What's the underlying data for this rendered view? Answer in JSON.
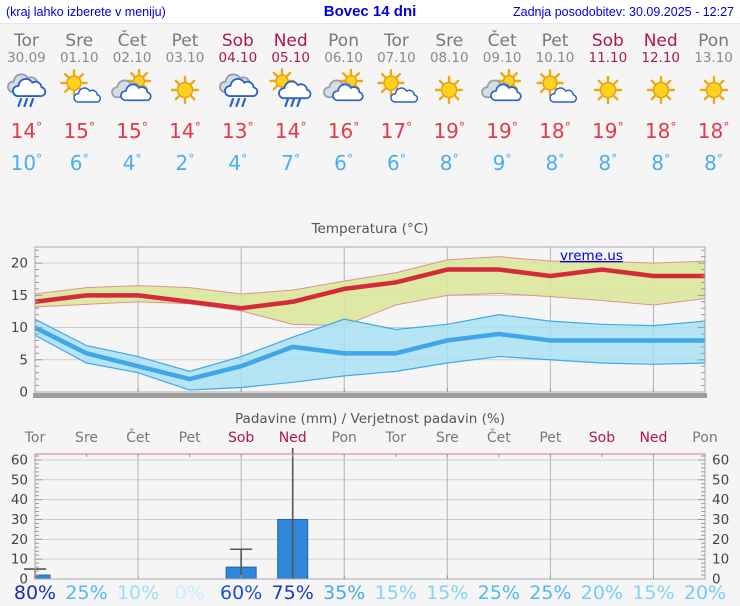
{
  "header": {
    "left_link": "(kraj lahko izberete v meniju)",
    "title": "Bovec 14 dni",
    "updated": "Zadnja posodobitev: 30.09.2025 - 12:27"
  },
  "watermark": "vreme.us",
  "forecast": {
    "degree_symbol": "°",
    "days": [
      {
        "name": "Tor",
        "date": "30.09",
        "weekend": false,
        "icon": "rain-cloud",
        "tmax": "14",
        "tmin": "10"
      },
      {
        "name": "Sre",
        "date": "01.10",
        "weekend": false,
        "icon": "sun-cloud",
        "tmax": "15",
        "tmin": "6"
      },
      {
        "name": "Čet",
        "date": "02.10",
        "weekend": false,
        "icon": "cloud-sun",
        "tmax": "15",
        "tmin": "4"
      },
      {
        "name": "Pet",
        "date": "03.10",
        "weekend": false,
        "icon": "sun",
        "tmax": "14",
        "tmin": "2"
      },
      {
        "name": "Sob",
        "date": "04.10",
        "weekend": true,
        "icon": "rain-cloud",
        "tmax": "13",
        "tmin": "4"
      },
      {
        "name": "Ned",
        "date": "05.10",
        "weekend": true,
        "icon": "sun-rain",
        "tmax": "14",
        "tmin": "7"
      },
      {
        "name": "Pon",
        "date": "06.10",
        "weekend": false,
        "icon": "cloud-sun",
        "tmax": "16",
        "tmin": "6"
      },
      {
        "name": "Tor",
        "date": "07.10",
        "weekend": false,
        "icon": "sun-cloud",
        "tmax": "17",
        "tmin": "6"
      },
      {
        "name": "Sre",
        "date": "08.10",
        "weekend": false,
        "icon": "sun",
        "tmax": "19",
        "tmin": "8"
      },
      {
        "name": "Čet",
        "date": "09.10",
        "weekend": false,
        "icon": "cloud-sun",
        "tmax": "19",
        "tmin": "9"
      },
      {
        "name": "Pet",
        "date": "10.10",
        "weekend": false,
        "icon": "sun-cloud",
        "tmax": "18",
        "tmin": "8"
      },
      {
        "name": "Sob",
        "date": "11.10",
        "weekend": true,
        "icon": "sun",
        "tmax": "19",
        "tmin": "8"
      },
      {
        "name": "Ned",
        "date": "12.10",
        "weekend": true,
        "icon": "sun",
        "tmax": "18",
        "tmin": "8"
      },
      {
        "name": "Pon",
        "date": "13.10",
        "weekend": false,
        "icon": "sun",
        "tmax": "18",
        "tmin": "8"
      }
    ]
  },
  "chart_data": [
    {
      "type": "line",
      "title": "Temperatura (°C)",
      "x_labels": [
        "Tor",
        "Sre",
        "Čet",
        "Pet",
        "Sob",
        "Ned",
        "Pon",
        "Tor",
        "Sre",
        "Čet",
        "Pet",
        "Sob",
        "Ned",
        "Pon"
      ],
      "ylim": [
        0,
        22.5
      ],
      "yticks": [
        0,
        5,
        10,
        15,
        20
      ],
      "grid": true,
      "legend": "none",
      "series": [
        {
          "name": "max temperature",
          "color": "#d42a3a",
          "values": [
            14,
            15,
            15,
            14,
            13,
            14,
            16,
            17,
            19,
            19,
            18,
            19,
            18,
            18
          ],
          "band_upper": [
            15.2,
            16.2,
            16.5,
            16.2,
            15.2,
            15.8,
            17.2,
            18.5,
            20.5,
            21,
            20.3,
            20.3,
            20,
            20.3
          ],
          "band_lower": [
            13.2,
            13.6,
            14,
            13.7,
            12.6,
            10.5,
            10.3,
            13.5,
            15,
            15.3,
            14.8,
            14.2,
            13.5,
            14.5
          ],
          "band_fill": "#dce89c",
          "band_edge": "#e49090"
        },
        {
          "name": "min temperature",
          "color": "#3fa6e8",
          "values": [
            10,
            6,
            4,
            2,
            4,
            7,
            6,
            6,
            8,
            9,
            8,
            8,
            8,
            8
          ],
          "band_upper": [
            11.3,
            7.2,
            5.5,
            3.2,
            5.5,
            8.5,
            11.3,
            9.7,
            10.5,
            12,
            11,
            10.5,
            10.3,
            11
          ],
          "band_lower": [
            8.8,
            4.5,
            3,
            0.3,
            0.7,
            1.5,
            2.5,
            3.2,
            4.5,
            5.5,
            5,
            4.5,
            4.3,
            4.5
          ],
          "band_fill": "#a5e0f5",
          "band_edge": "#41a8e8"
        }
      ]
    },
    {
      "type": "bar",
      "title": "Padavine (mm) / Verjetnost padavin (%)",
      "categories": [
        "Tor",
        "Sre",
        "Čet",
        "Pet",
        "Sob",
        "Ned",
        "Pon",
        "Tor",
        "Sre",
        "Čet",
        "Pet",
        "Sob",
        "Ned",
        "Pon"
      ],
      "weekend": [
        false,
        false,
        false,
        false,
        true,
        true,
        false,
        false,
        false,
        false,
        false,
        true,
        true,
        false
      ],
      "values": [
        2,
        0,
        0,
        0,
        6,
        30,
        0,
        0,
        0,
        0,
        0,
        0,
        0,
        0
      ],
      "whisker_max": [
        5,
        null,
        null,
        null,
        15,
        66,
        null,
        null,
        null,
        null,
        null,
        null,
        null,
        null
      ],
      "whisker_min": [
        0,
        null,
        null,
        null,
        2,
        0,
        null,
        null,
        null,
        null,
        null,
        null,
        null,
        null
      ],
      "ylim": [
        0,
        63
      ],
      "yticks": [
        0,
        10,
        20,
        30,
        40,
        50,
        60
      ],
      "bar_color": "#3087d8",
      "bar_edge": "#1d64b4",
      "probabilities": [
        {
          "label": "80%",
          "color": "#1b2fae"
        },
        {
          "label": "25%",
          "color": "#54bbec"
        },
        {
          "label": "10%",
          "color": "#9cdef6"
        },
        {
          "label": "0%",
          "color": "#c9effa"
        },
        {
          "label": "60%",
          "color": "#2050c8"
        },
        {
          "label": "75%",
          "color": "#1c3ab4"
        },
        {
          "label": "35%",
          "color": "#49a8e8"
        },
        {
          "label": "15%",
          "color": "#84d4f4"
        },
        {
          "label": "15%",
          "color": "#84d4f4"
        },
        {
          "label": "25%",
          "color": "#54bbec"
        },
        {
          "label": "25%",
          "color": "#54bbec"
        },
        {
          "label": "20%",
          "color": "#73cdf2"
        },
        {
          "label": "15%",
          "color": "#84d4f4"
        },
        {
          "label": "20%",
          "color": "#73cdf2"
        }
      ]
    }
  ]
}
